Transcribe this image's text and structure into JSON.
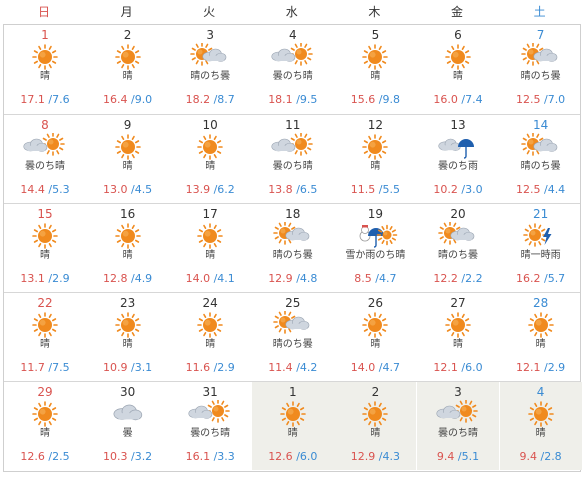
{
  "weekdays": [
    {
      "label": "日",
      "color": "#d9534f"
    },
    {
      "label": "月",
      "color": "#333333"
    },
    {
      "label": "火",
      "color": "#333333"
    },
    {
      "label": "水",
      "color": "#333333"
    },
    {
      "label": "木",
      "color": "#333333"
    },
    {
      "label": "金",
      "color": "#333333"
    },
    {
      "label": "土",
      "color": "#3a8bd3"
    }
  ],
  "colors": {
    "high": "#d9534f",
    "low": "#3a8bd3",
    "sun": "#f08a1e",
    "cloud": "#cfd6df",
    "rain": "#1f5fae",
    "next_month_bg": "#efefea"
  },
  "weeks": [
    [
      {
        "date": "1",
        "weather": "晴",
        "icon": "sun",
        "hi": "17.1",
        "lo": "/7.6"
      },
      {
        "date": "2",
        "weather": "晴",
        "icon": "sun",
        "hi": "16.4",
        "lo": "/9.0"
      },
      {
        "date": "3",
        "weather": "晴のち曇",
        "icon": "sun-cloud",
        "hi": "18.2",
        "lo": "/8.7"
      },
      {
        "date": "4",
        "weather": "曇のち晴",
        "icon": "cloud-sun",
        "hi": "18.1",
        "lo": "/9.5"
      },
      {
        "date": "5",
        "weather": "晴",
        "icon": "sun",
        "hi": "15.6",
        "lo": "/9.8"
      },
      {
        "date": "6",
        "weather": "晴",
        "icon": "sun",
        "hi": "16.0",
        "lo": "/7.4"
      },
      {
        "date": "7",
        "weather": "晴のち曇",
        "icon": "sun-cloud",
        "hi": "12.5",
        "lo": "/7.0"
      }
    ],
    [
      {
        "date": "8",
        "weather": "曇のち晴",
        "icon": "cloud-sun",
        "hi": "14.4",
        "lo": "/5.3"
      },
      {
        "date": "9",
        "weather": "晴",
        "icon": "sun",
        "hi": "13.0",
        "lo": "/4.5"
      },
      {
        "date": "10",
        "weather": "晴",
        "icon": "sun",
        "hi": "13.9",
        "lo": "/6.2"
      },
      {
        "date": "11",
        "weather": "曇のち晴",
        "icon": "cloud-sun",
        "hi": "13.8",
        "lo": "/6.5"
      },
      {
        "date": "12",
        "weather": "晴",
        "icon": "sun",
        "hi": "11.5",
        "lo": "/5.5"
      },
      {
        "date": "13",
        "weather": "曇のち雨",
        "icon": "cloud-rain",
        "hi": "10.2",
        "lo": "/3.0"
      },
      {
        "date": "14",
        "weather": "晴のち曇",
        "icon": "sun-cloud",
        "hi": "12.5",
        "lo": "/4.4"
      }
    ],
    [
      {
        "date": "15",
        "weather": "晴",
        "icon": "sun",
        "hi": "13.1",
        "lo": "/2.9"
      },
      {
        "date": "16",
        "weather": "晴",
        "icon": "sun",
        "hi": "12.8",
        "lo": "/4.9"
      },
      {
        "date": "17",
        "weather": "晴",
        "icon": "sun",
        "hi": "14.0",
        "lo": "/4.1"
      },
      {
        "date": "18",
        "weather": "晴のち曇",
        "icon": "sun-cloud",
        "hi": "12.9",
        "lo": "/4.8"
      },
      {
        "date": "19",
        "weather": "雪か雨のち晴",
        "icon": "snow-sun",
        "hi": "8.5",
        "lo": "/4.7"
      },
      {
        "date": "20",
        "weather": "晴のち曇",
        "icon": "sun-cloud",
        "hi": "12.2",
        "lo": "/2.2"
      },
      {
        "date": "21",
        "weather": "晴一時雨",
        "icon": "sun-rain",
        "hi": "16.2",
        "lo": "/5.7"
      }
    ],
    [
      {
        "date": "22",
        "weather": "晴",
        "icon": "sun",
        "hi": "11.7",
        "lo": "/7.5"
      },
      {
        "date": "23",
        "weather": "晴",
        "icon": "sun",
        "hi": "10.9",
        "lo": "/3.1"
      },
      {
        "date": "24",
        "weather": "晴",
        "icon": "sun",
        "hi": "11.6",
        "lo": "/2.9"
      },
      {
        "date": "25",
        "weather": "晴のち曇",
        "icon": "sun-cloud",
        "hi": "11.4",
        "lo": "/4.2"
      },
      {
        "date": "26",
        "weather": "晴",
        "icon": "sun",
        "hi": "14.0",
        "lo": "/4.7"
      },
      {
        "date": "27",
        "weather": "晴",
        "icon": "sun",
        "hi": "12.1",
        "lo": "/6.0"
      },
      {
        "date": "28",
        "weather": "晴",
        "icon": "sun",
        "hi": "12.1",
        "lo": "/2.9"
      }
    ],
    [
      {
        "date": "29",
        "weather": "晴",
        "icon": "sun",
        "hi": "12.6",
        "lo": "/2.5"
      },
      {
        "date": "30",
        "weather": "曇",
        "icon": "cloud",
        "hi": "10.3",
        "lo": "/3.2"
      },
      {
        "date": "31",
        "weather": "曇のち晴",
        "icon": "cloud-sun",
        "hi": "16.1",
        "lo": "/3.3"
      },
      {
        "date": "1",
        "weather": "晴",
        "icon": "sun",
        "hi": "12.6",
        "lo": "/6.0",
        "next": true
      },
      {
        "date": "2",
        "weather": "晴",
        "icon": "sun",
        "hi": "12.9",
        "lo": "/4.3",
        "next": true
      },
      {
        "date": "3",
        "weather": "曇のち晴",
        "icon": "cloud-sun",
        "hi": "9.4",
        "lo": "/5.1",
        "next": true
      },
      {
        "date": "4",
        "weather": "晴",
        "icon": "sun",
        "hi": "9.4",
        "lo": "/2.8",
        "next": true
      }
    ]
  ]
}
